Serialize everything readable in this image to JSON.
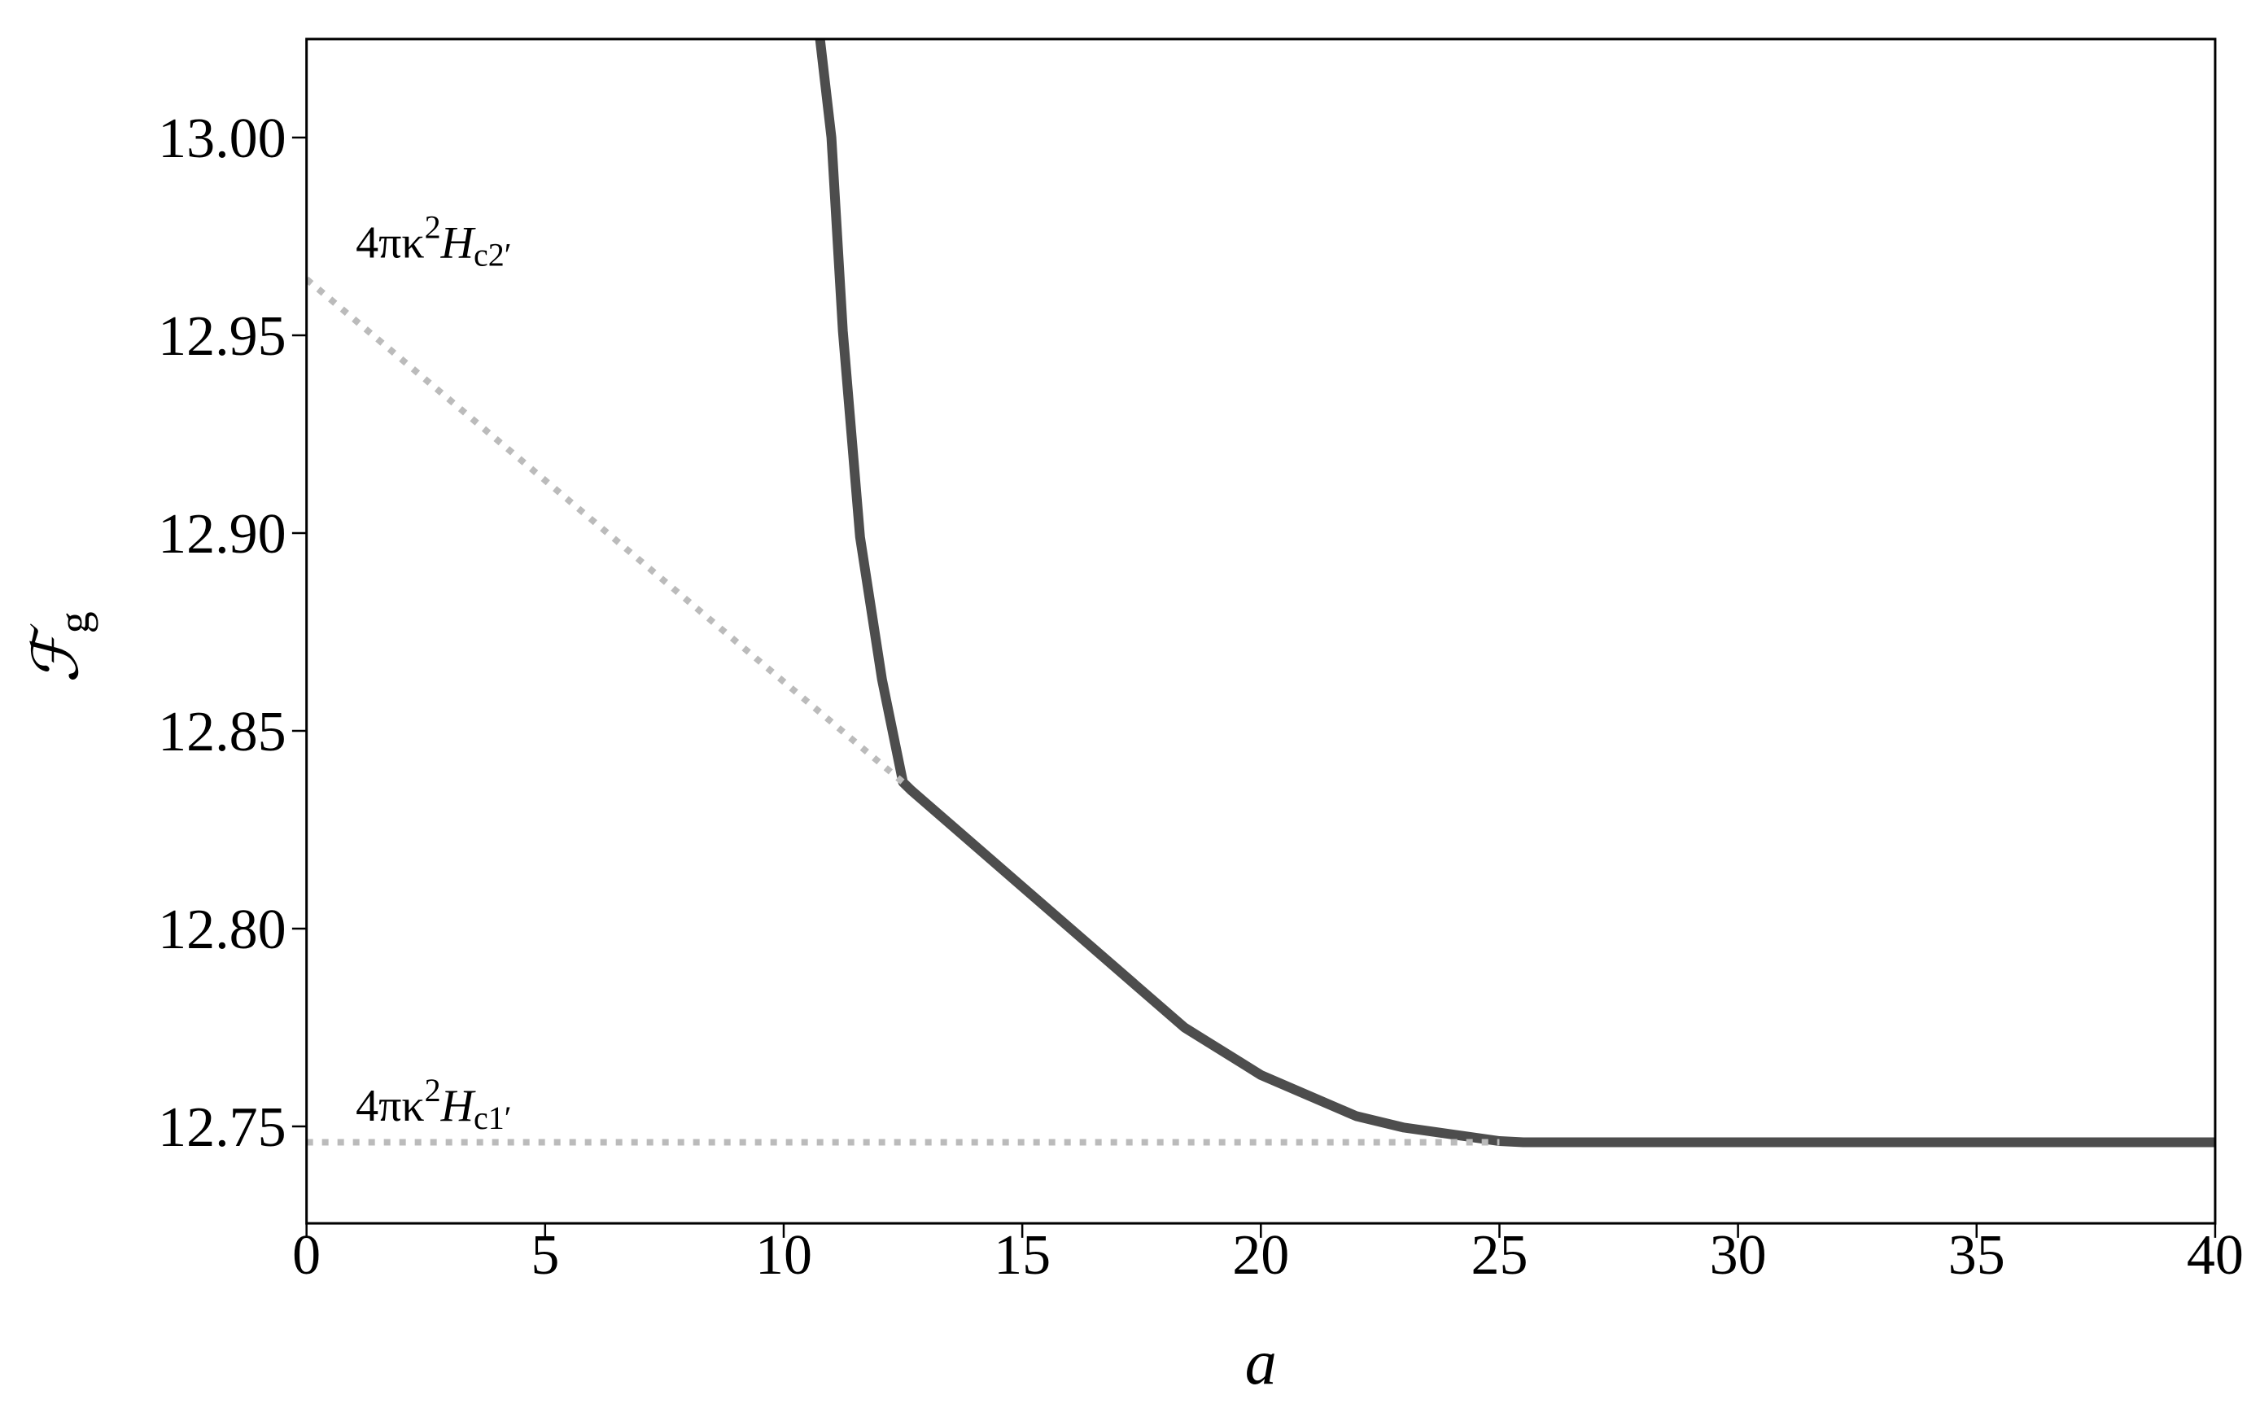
{
  "chart_data": {
    "type": "line",
    "xlabel": "a",
    "ylabel": "ℱ",
    "ylabel_sub": "g",
    "xlim": [
      0,
      40
    ],
    "ylim": [
      12.7255,
      13.0249
    ],
    "xticks": [
      0,
      5,
      10,
      15,
      20,
      25,
      30,
      35,
      40
    ],
    "yticks": [
      12.75,
      {
        "value": 12.8,
        "label": "12.80"
      },
      12.85,
      {
        "value": 12.9,
        "label": "12.90"
      },
      12.95,
      {
        "value": 13.0,
        "label": "13.00"
      }
    ],
    "series": [
      {
        "color": "#4d4d4d",
        "style": "solid",
        "x": [
          10.76,
          11.0,
          11.24,
          11.6,
          12.06,
          12.5,
          12.67,
          18.4,
          20,
          22,
          23,
          25,
          25.5,
          40
        ],
        "values": [
          13.025,
          13.0,
          12.951,
          12.899,
          12.863,
          12.837,
          12.835,
          12.775,
          12.763,
          12.7526,
          12.7497,
          12.7463,
          12.746,
          12.746
        ]
      },
      {
        "color": "#bbbbbb",
        "style": "dotted",
        "x": [
          0,
          12.5
        ],
        "values": [
          12.9642,
          12.837
        ]
      },
      {
        "color": "#bbbbbb",
        "style": "dotted",
        "x": [
          0,
          25
        ],
        "values": [
          12.746,
          12.746
        ]
      }
    ],
    "annotations": [
      {
        "base": "4πκ",
        "sup": "2",
        "var": "H",
        "sub": "c2′"
      },
      {
        "base": "4πκ",
        "sup": "2",
        "var": "H",
        "sub": "c1′"
      }
    ]
  }
}
